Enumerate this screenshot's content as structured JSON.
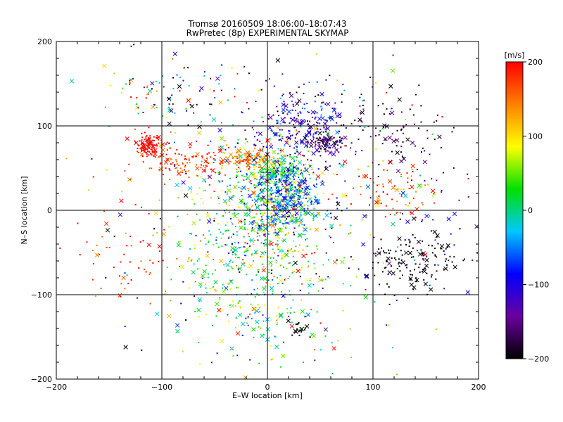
{
  "chart_data": {
    "type": "scatter",
    "title": "Tromsø 20160509 18:06:00–18:07:43",
    "subtitle": "RwPretec (8p) EXPERIMENTAL SKYMAP",
    "xlabel": "E–W location [km]",
    "ylabel": "N–S location [km]",
    "xlim": [
      -200,
      200
    ],
    "ylim": [
      -200,
      200
    ],
    "x_ticks": [
      "−200",
      "−100",
      "0",
      "100",
      "200"
    ],
    "y_ticks": [
      "−200",
      "−100",
      "0",
      "100",
      "200"
    ],
    "grid": true,
    "markers": [
      "dot",
      "cross"
    ],
    "colorbar": {
      "unit": "[m/s]",
      "range": [
        -200,
        200
      ],
      "ticks": [
        "200",
        "100",
        "0",
        "−100",
        "−200"
      ],
      "colors": [
        "#000000",
        "#6a00a0",
        "#0000ff",
        "#00c8ff",
        "#00e000",
        "#ffff00",
        "#ff8000",
        "#ff0000"
      ]
    },
    "clusters": [
      {
        "x": -112,
        "y": 78,
        "sx": 6,
        "sy": 6,
        "n": 120,
        "v": 200,
        "dv": 10
      },
      {
        "x": -80,
        "y": 55,
        "sx": 25,
        "sy": 10,
        "n": 120,
        "v": 180,
        "dv": 25
      },
      {
        "x": -20,
        "y": 62,
        "sx": 14,
        "sy": 6,
        "n": 110,
        "v": 140,
        "dv": 40
      },
      {
        "x": 10,
        "y": 50,
        "sx": 15,
        "sy": 8,
        "n": 120,
        "v": 40,
        "dv": 40
      },
      {
        "x": 0,
        "y": 5,
        "sx": 28,
        "sy": 40,
        "n": 700,
        "v": 20,
        "dv": 90
      },
      {
        "x": 20,
        "y": 20,
        "sx": 14,
        "sy": 18,
        "n": 220,
        "v": -70,
        "dv": 40
      },
      {
        "x": -10,
        "y": -90,
        "sx": 40,
        "sy": 50,
        "n": 300,
        "v": 30,
        "dv": 60
      },
      {
        "x": 30,
        "y": 100,
        "sx": 22,
        "sy": 22,
        "n": 250,
        "v": -120,
        "dv": 50
      },
      {
        "x": 55,
        "y": 80,
        "sx": 8,
        "sy": 5,
        "n": 90,
        "v": -160,
        "dv": 20
      },
      {
        "x": 140,
        "y": -60,
        "sx": 22,
        "sy": 16,
        "n": 140,
        "v": -200,
        "dv": 10
      },
      {
        "x": 120,
        "y": 90,
        "sx": 30,
        "sy": 30,
        "n": 110,
        "v": -180,
        "dv": 25
      },
      {
        "x": 120,
        "y": 20,
        "sx": 25,
        "sy": 15,
        "n": 70,
        "v": 170,
        "dv": 40
      },
      {
        "x": 140,
        "y": -30,
        "sx": 45,
        "sy": 35,
        "n": 60,
        "v": -110,
        "dv": 60
      },
      {
        "x": -130,
        "y": -60,
        "sx": 25,
        "sy": 30,
        "n": 50,
        "v": 180,
        "dv": 40
      },
      {
        "x": -120,
        "y": 140,
        "sx": 25,
        "sy": 25,
        "n": 45,
        "v": 60,
        "dv": 120
      },
      {
        "x": -70,
        "y": 140,
        "sx": 25,
        "sy": 25,
        "n": 60,
        "v": -100,
        "dv": 120
      },
      {
        "x": 30,
        "y": -140,
        "sx": 6,
        "sy": 6,
        "n": 20,
        "v": -200,
        "dv": 5
      },
      {
        "x": 0,
        "y": 0,
        "sx": 90,
        "sy": 90,
        "n": 280,
        "v": 0,
        "dv": 200
      }
    ]
  }
}
